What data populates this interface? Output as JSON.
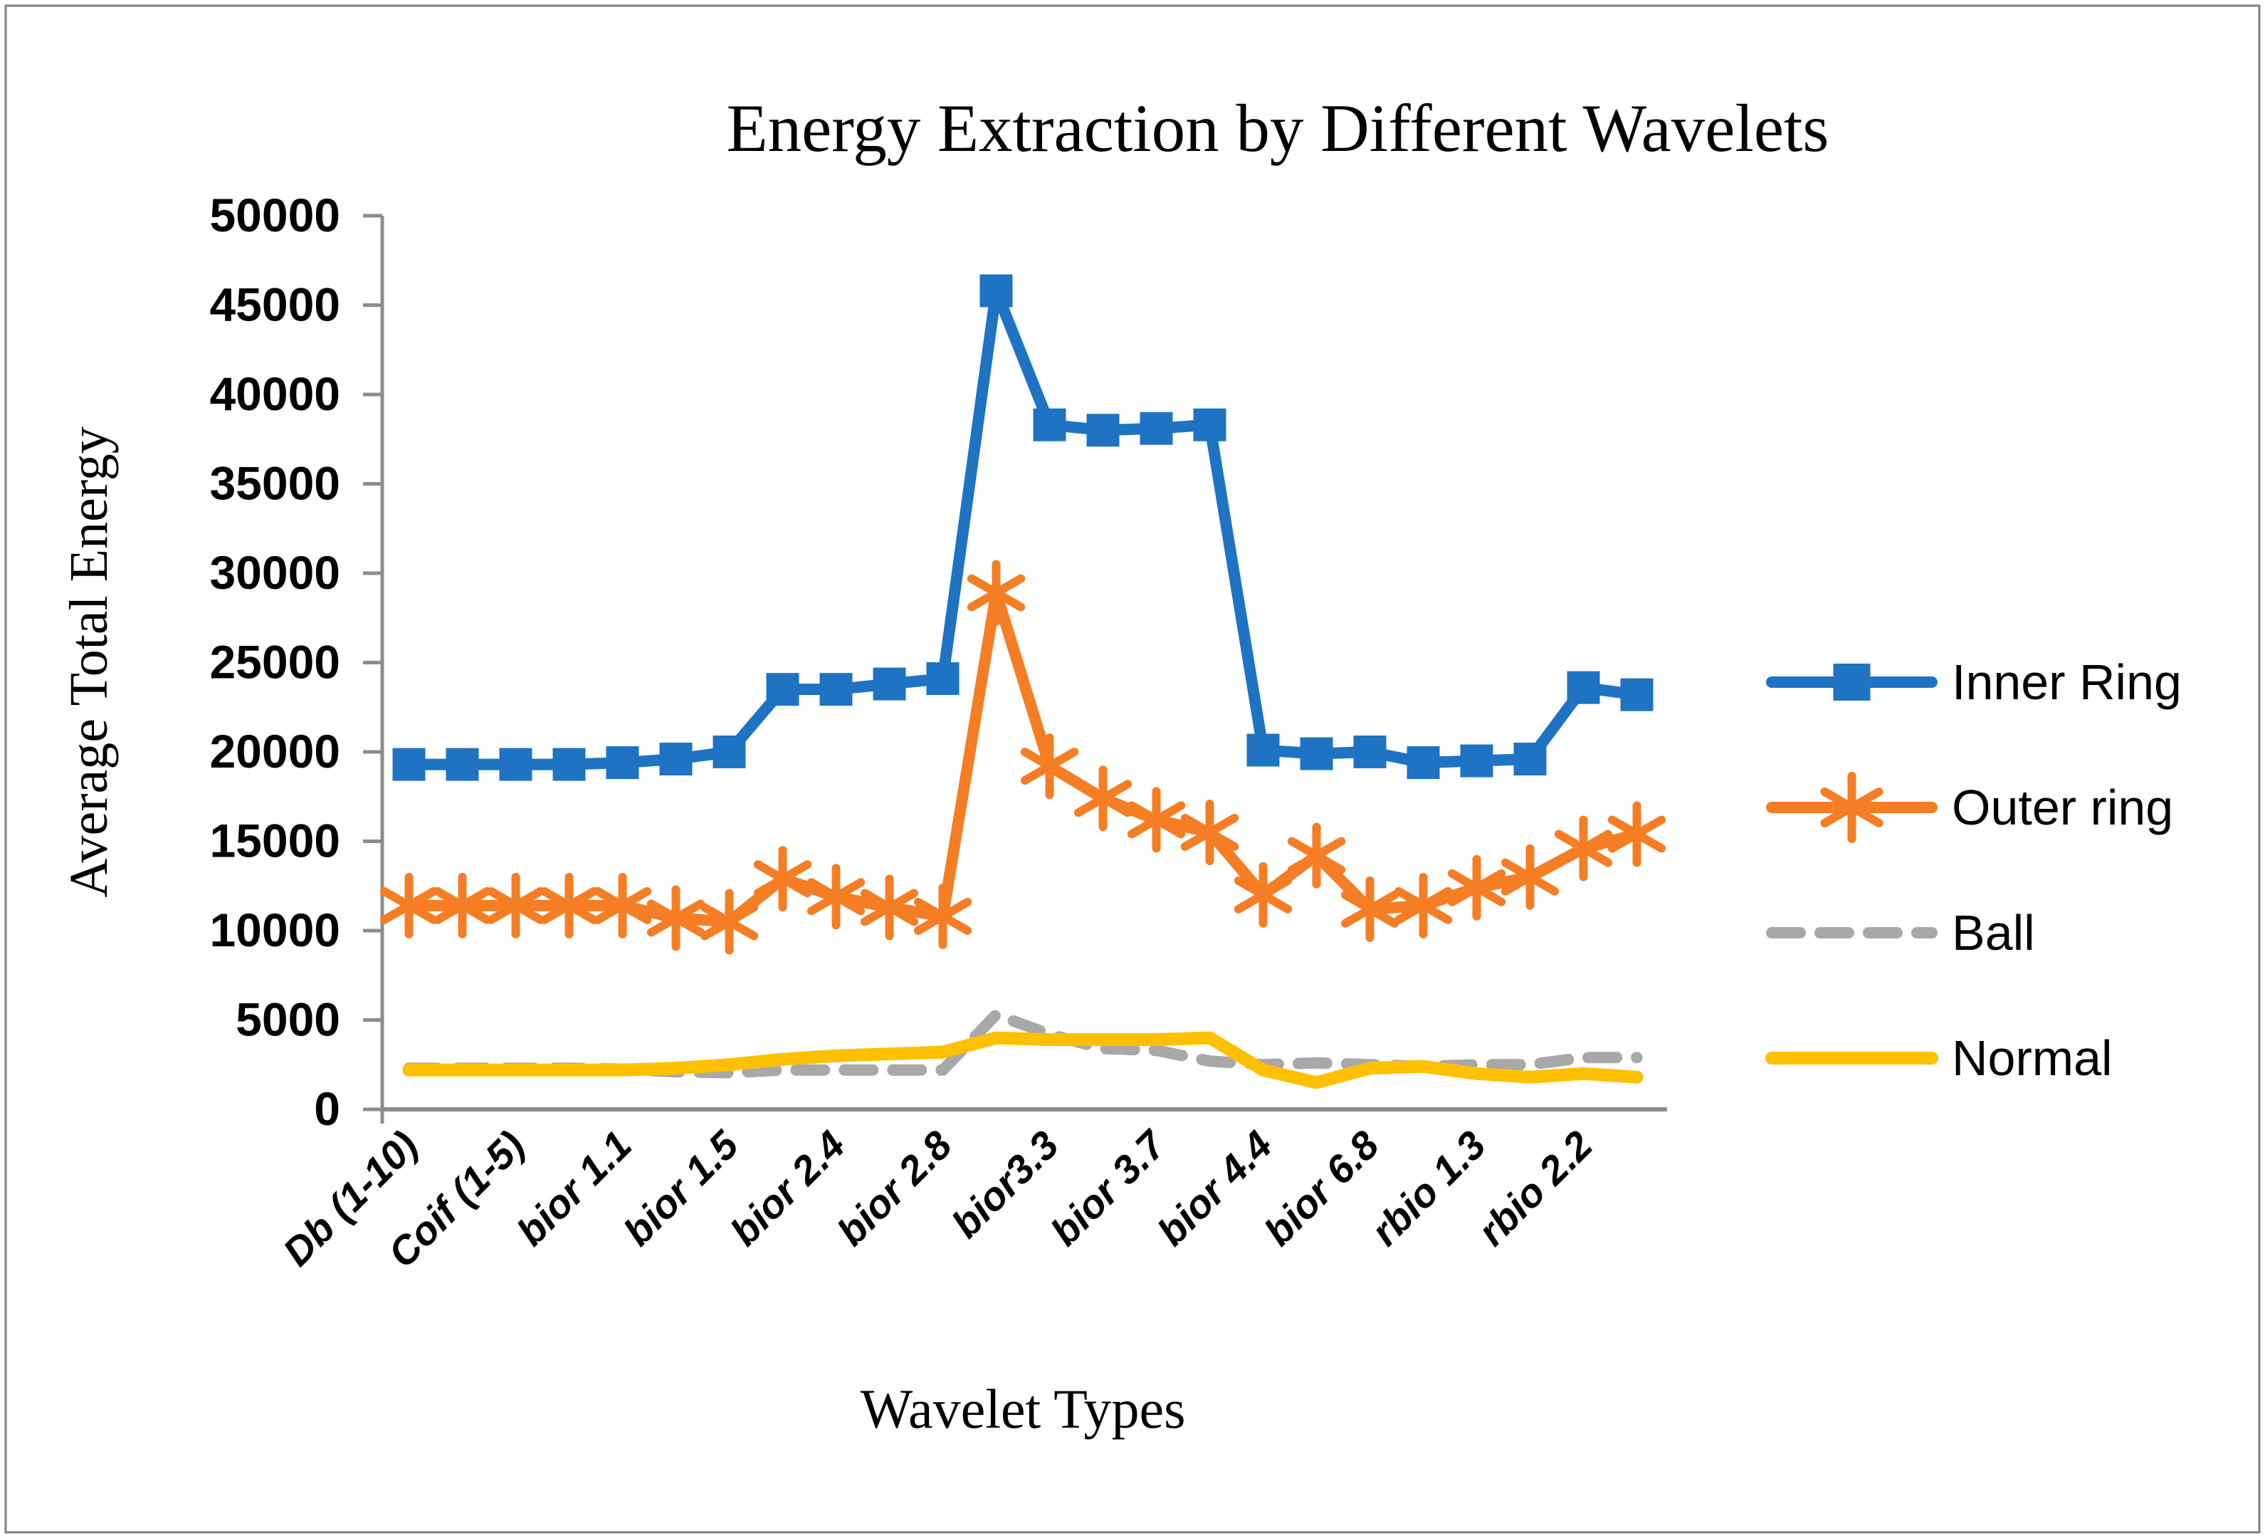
{
  "chart_data": {
    "type": "line",
    "title": "Energy Extraction by Different Wavelets",
    "xlabel": "Wavelet Types",
    "ylabel": "Average Total Energy",
    "ylim": [
      0,
      50000
    ],
    "ytick_step": 5000,
    "ytick_labels": [
      "0",
      "5000",
      "10000",
      "15000",
      "20000",
      "25000",
      "30000",
      "35000",
      "40000",
      "45000",
      "50000"
    ],
    "categories": [
      "Db (1-10)",
      "Coif (1-5)",
      "bior 1.1",
      "bior 1.5",
      "bior 2.4",
      "bior 2.8",
      "bior3.3",
      "bior 3.7",
      "bior 4.4",
      "bior 6.8",
      "rbio 1.3",
      "rbio 2.2"
    ],
    "points_per_category": 2,
    "grid": "off",
    "legend_position": "right",
    "axis_color": "#8C8C8C",
    "border_color": "#7F7F7F",
    "text_color": "#000000",
    "series": [
      {
        "name": "Inner Ring",
        "color": "#1E73C3",
        "marker": "square",
        "style": "solid",
        "values": [
          19300,
          19300,
          19300,
          19300,
          19400,
          19600,
          20000,
          23500,
          23500,
          23800,
          24100,
          45800,
          38300,
          38000,
          38100,
          38300,
          20100,
          19900,
          20000,
          19400,
          19500,
          19600,
          23600,
          23200
        ]
      },
      {
        "name": "Outer ring",
        "color": "#F57E25",
        "marker": "asterisk",
        "style": "solid",
        "values": [
          11400,
          11400,
          11400,
          11400,
          11400,
          10700,
          10500,
          12900,
          11900,
          11300,
          10800,
          28900,
          19200,
          17400,
          16200,
          15500,
          12000,
          14200,
          11200,
          11400,
          12400,
          13000,
          14600,
          15400
        ]
      },
      {
        "name": "Ball",
        "color": "#A8A8A8",
        "marker": "none",
        "style": "dashed",
        "values": [
          2300,
          2300,
          2300,
          2300,
          2250,
          2100,
          2050,
          2200,
          2200,
          2200,
          2200,
          5300,
          4200,
          3400,
          3300,
          2700,
          2500,
          2600,
          2500,
          2400,
          2500,
          2500,
          2900,
          2900
        ]
      },
      {
        "name": "Normal",
        "color": "#FFC000",
        "marker": "none",
        "style": "solid",
        "values": [
          2200,
          2200,
          2200,
          2200,
          2200,
          2300,
          2500,
          2800,
          3000,
          3100,
          3200,
          4000,
          3900,
          3900,
          3900,
          4000,
          2200,
          1500,
          2300,
          2400,
          2000,
          1800,
          2000,
          1800
        ]
      }
    ]
  }
}
